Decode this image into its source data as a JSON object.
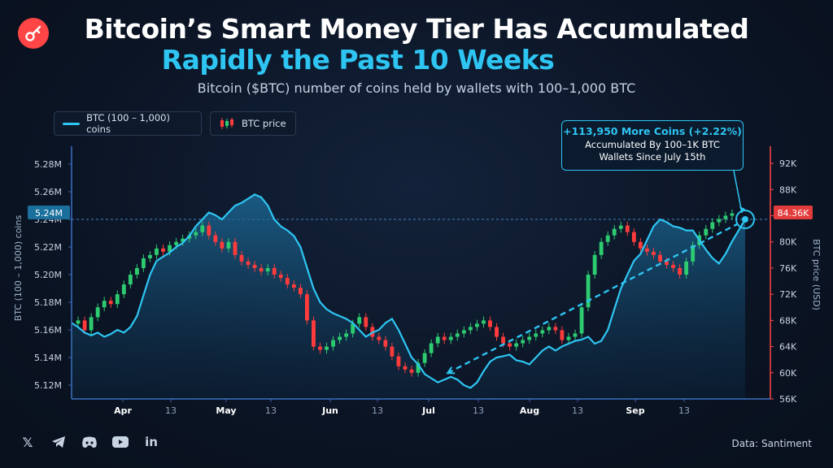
{
  "header": {
    "title_line1": "Bitcoin’s Smart Money Tier Has Accumulated",
    "title_line2": "Rapidly the Past 10 Weeks",
    "subtitle": "Bitcoin ($BTC) number of coins held by wallets with 100–1,000 BTC"
  },
  "legend": {
    "series1": "BTC (100 – 1,000) coins",
    "series2": "BTC price"
  },
  "annotation": {
    "line1": "+113,950 More Coins (+2.22%)",
    "line2": "Accumulated By 100–1K BTC",
    "line3": "Wallets Since July 15th"
  },
  "footer": {
    "source": "Data: Santiment",
    "icons": [
      "x-icon",
      "telegram-icon",
      "discord-icon",
      "youtube-icon",
      "linkedin-icon"
    ]
  },
  "colors": {
    "accent": "#2ec5f2",
    "up": "#2ecc71",
    "down": "#ff3b3b",
    "right_axis": "#ff4545"
  },
  "chart_data": {
    "type": "line",
    "x_tick_labels": [
      "Apr",
      "13",
      "May",
      "13",
      "Jun",
      "13",
      "Jul",
      "13",
      "Aug",
      "13",
      "Sep",
      "13"
    ],
    "left_axis": {
      "label": "BTC (100 – 1,000) coins",
      "ticks": [
        "5.12M",
        "5.14M",
        "5.16M",
        "5.18M",
        "5.20M",
        "5.22M",
        "5.24M",
        "5.26M",
        "5.28M"
      ],
      "ylim": [
        5.11,
        5.29
      ],
      "current_value_label": "5.24M",
      "current_value": 5.24
    },
    "right_axis": {
      "label": "BTC price (USD)",
      "ticks": [
        "56K",
        "60K",
        "64K",
        "68K",
        "72K",
        "76K",
        "80K",
        "84K",
        "88K",
        "92K"
      ],
      "ylim": [
        56,
        94
      ],
      "current_value_label": "84.36K",
      "current_value": 84.36
    },
    "series": [
      {
        "name": "BTC (100 – 1,000) coins",
        "unit": "M BTC",
        "values": [
          5.165,
          5.162,
          5.158,
          5.156,
          5.158,
          5.155,
          5.157,
          5.16,
          5.158,
          5.162,
          5.17,
          5.185,
          5.2,
          5.21,
          5.213,
          5.216,
          5.22,
          5.223,
          5.228,
          5.235,
          5.24,
          5.245,
          5.243,
          5.24,
          5.245,
          5.25,
          5.252,
          5.255,
          5.258,
          5.256,
          5.25,
          5.24,
          5.235,
          5.232,
          5.228,
          5.22,
          5.205,
          5.19,
          5.18,
          5.175,
          5.172,
          5.17,
          5.168,
          5.165,
          5.16,
          5.155,
          5.158,
          5.16,
          5.165,
          5.168,
          5.16,
          5.15,
          5.14,
          5.135,
          5.128,
          5.125,
          5.122,
          5.124,
          5.126,
          5.124,
          5.12,
          5.118,
          5.122,
          5.13,
          5.137,
          5.14,
          5.141,
          5.142,
          5.138,
          5.137,
          5.135,
          5.14,
          5.145,
          5.148,
          5.145,
          5.148,
          5.15,
          5.152,
          5.153,
          5.155,
          5.15,
          5.152,
          5.16,
          5.175,
          5.19,
          5.2,
          5.21,
          5.215,
          5.225,
          5.235,
          5.24,
          5.238,
          5.235,
          5.234,
          5.232,
          5.232,
          5.225,
          5.218,
          5.212,
          5.208,
          5.215,
          5.224,
          5.232,
          5.24
        ]
      },
      {
        "name": "BTC price",
        "unit": "K USD",
        "values": [
          67.5,
          68.0,
          66.5,
          68.5,
          70.0,
          71.0,
          70.5,
          72.0,
          73.5,
          75.0,
          76.0,
          77.5,
          78.0,
          79.0,
          78.5,
          79.5,
          80.0,
          80.5,
          81.0,
          81.5,
          82.5,
          81.0,
          80.0,
          79.0,
          80.0,
          78.0,
          77.0,
          76.5,
          76.0,
          75.5,
          76.0,
          75.0,
          74.5,
          73.5,
          73.0,
          72.0,
          68.0,
          64.0,
          63.5,
          64.0,
          65.0,
          65.5,
          66.0,
          67.5,
          68.5,
          67.0,
          65.5,
          65.0,
          64.0,
          62.5,
          61.0,
          60.5,
          60.0,
          61.5,
          63.0,
          64.5,
          65.5,
          65.0,
          65.5,
          66.0,
          66.5,
          67.0,
          67.5,
          68.0,
          67.0,
          65.5,
          64.5,
          64.0,
          64.5,
          65.0,
          65.5,
          66.0,
          66.5,
          67.0,
          66.5,
          65.0,
          65.5,
          66.0,
          70.0,
          75.0,
          78.0,
          80.0,
          81.0,
          82.0,
          82.5,
          81.5,
          80.0,
          79.0,
          78.5,
          78.0,
          77.0,
          76.5,
          76.0,
          75.0,
          77.0,
          79.5,
          81.0,
          82.0,
          83.0,
          83.5,
          84.0,
          84.36
        ]
      }
    ],
    "trendline": {
      "from_coins": 5.124,
      "to_coins": 5.24
    }
  }
}
